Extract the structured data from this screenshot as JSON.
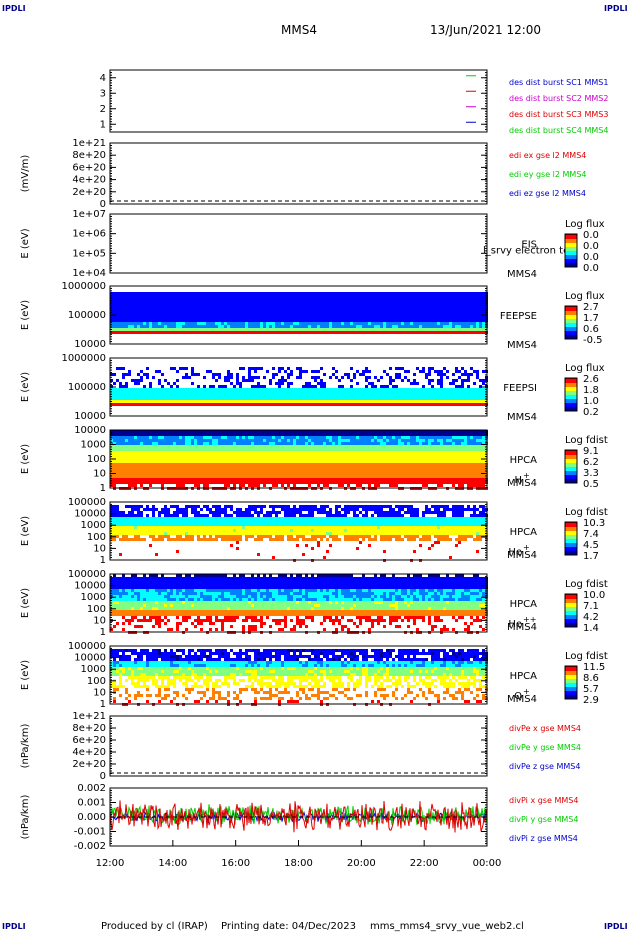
{
  "corner_marks": [
    "IPDLI",
    "IPDLI",
    "IPDLI",
    "IPDLI"
  ],
  "header": {
    "spacecraft": "MMS4",
    "datetime": "13/Jun/2021 12:00"
  },
  "footer": {
    "producer": "Produced by cl (IRAP)",
    "printing": "Printing date: 04/Dec/2023",
    "file": "mms_mms4_srvy_vue_web2.cl"
  },
  "colors": {
    "blue": "#0000cc",
    "green": "#00cc00",
    "red": "#dd0000",
    "magenta": "#cc00cc",
    "jet": [
      "#00008f",
      "#0000ff",
      "#0080ff",
      "#00ffff",
      "#80ff80",
      "#ffff00",
      "#ff8000",
      "#ff0000",
      "#800000"
    ]
  },
  "chart_data": [
    {
      "id": "bursts",
      "type": "line",
      "ylabel": "",
      "yticks": [
        "4",
        "3",
        "2",
        "1"
      ],
      "legend": [
        {
          "text": "des dist burst SC1 MMS1",
          "color": "#0000cc"
        },
        {
          "text": "des dist burst SC2 MMS2",
          "color": "#cc00cc"
        },
        {
          "text": "des dist burst SC3 MMS3",
          "color": "#dd0000"
        },
        {
          "text": "des dist burst SC4 MMS4",
          "color": "#00cc00"
        }
      ],
      "series": [
        {
          "level": 4,
          "color": "#00cc00"
        },
        {
          "level": 3,
          "color": "#dd0000"
        },
        {
          "level": 2,
          "color": "#cc00cc"
        },
        {
          "level": 1,
          "color": "#0000cc"
        }
      ]
    },
    {
      "id": "edi",
      "type": "line",
      "ylabel": "(mV/m)",
      "yticks": [
        "1e+21",
        "8e+20",
        "6e+20",
        "4e+20",
        "2e+20",
        "0"
      ],
      "legend": [
        {
          "text": "edi ex gse l2 MMS4",
          "color": "#dd0000"
        },
        {
          "text": "edi ey gse l2 MMS4",
          "color": "#00cc00"
        },
        {
          "text": "edi ez gse l2 MMS4",
          "color": "#0000cc"
        }
      ],
      "zero_line": true
    },
    {
      "id": "eis",
      "type": "heatmap",
      "ylabel": "E (eV)",
      "yticks": [
        "1e+07",
        "1e+06",
        "1e+05",
        "1e+04"
      ],
      "instrument": "EIS",
      "instrument2": "l_srvy electron to",
      "spacecraft": "MMS4",
      "cbar_title": "Log flux",
      "cbar_ticks": [
        "0.0",
        "0.0",
        "0.0",
        "0.0"
      ],
      "empty": true
    },
    {
      "id": "feepse",
      "type": "heatmap",
      "ylabel": "E (eV)",
      "yticks": [
        "1000000",
        "100000",
        "10000"
      ],
      "instrument": "FEEPSE",
      "spacecraft": "MMS4",
      "cbar_title": "Log flux",
      "cbar_ticks": [
        "2.7",
        "1.7",
        "0.6",
        "-0.5"
      ]
    },
    {
      "id": "feepsi",
      "type": "heatmap",
      "ylabel": "E (eV)",
      "yticks": [
        "1000000",
        "100000",
        "10000"
      ],
      "instrument": "FEEPSI",
      "spacecraft": "MMS4",
      "cbar_title": "Log flux",
      "cbar_ticks": [
        "2.6",
        "1.8",
        "1.0",
        "0.2"
      ]
    },
    {
      "id": "hpca_h",
      "type": "heatmap",
      "ylabel": "E (eV)",
      "yticks": [
        "10000",
        "1000",
        "100",
        "10",
        "1"
      ],
      "instrument": "HPCA",
      "spacecraft": "MMS4",
      "species": "H",
      "charge": "+",
      "cbar_title": "Log fdist",
      "cbar_ticks": [
        "9.1",
        "6.2",
        "3.3",
        "0.5"
      ]
    },
    {
      "id": "hpca_he",
      "type": "heatmap",
      "ylabel": "E (eV)",
      "yticks": [
        "100000",
        "10000",
        "1000",
        "100",
        "10",
        "1"
      ],
      "instrument": "HPCA",
      "spacecraft": "MMS4",
      "species": "He",
      "charge": "+",
      "cbar_title": "Log fdist",
      "cbar_ticks": [
        "10.3",
        "7.4",
        "4.5",
        "1.7"
      ]
    },
    {
      "id": "hpca_he2",
      "type": "heatmap",
      "ylabel": "E (eV)",
      "yticks": [
        "100000",
        "10000",
        "1000",
        "100",
        "10",
        "1"
      ],
      "instrument": "HPCA",
      "spacecraft": "MMS4",
      "species": "He",
      "charge": "++",
      "cbar_title": "Log fdist",
      "cbar_ticks": [
        "10.0",
        "7.1",
        "4.2",
        "1.4"
      ]
    },
    {
      "id": "hpca_o",
      "type": "heatmap",
      "ylabel": "E (eV)",
      "yticks": [
        "100000",
        "10000",
        "1000",
        "100",
        "10",
        "1"
      ],
      "instrument": "HPCA",
      "spacecraft": "MMS4",
      "species": "O",
      "charge": "+",
      "cbar_title": "Log fdist",
      "cbar_ticks": [
        "11.5",
        "8.6",
        "5.7",
        "2.9"
      ]
    },
    {
      "id": "divpe",
      "type": "line",
      "ylabel": "(nPa/km)",
      "yticks": [
        "1e+21",
        "8e+20",
        "6e+20",
        "4e+20",
        "2e+20",
        "0"
      ],
      "legend": [
        {
          "text": "divPe x gse MMS4",
          "color": "#dd0000"
        },
        {
          "text": "divPe y gse MMS4",
          "color": "#00cc00"
        },
        {
          "text": "divPe z gse MMS4",
          "color": "#0000cc"
        }
      ],
      "zero_line": true
    },
    {
      "id": "divpi",
      "type": "line",
      "ylabel": "(nPa/km)",
      "yticks": [
        "0.002",
        "0.001",
        "0.000",
        "-0.001",
        "-0.002"
      ],
      "ylim": [
        -0.0025,
        0.0025
      ],
      "legend": [
        {
          "text": "divPi x gse MMS4",
          "color": "#dd0000"
        },
        {
          "text": "divPi y gse MMS4",
          "color": "#00cc00"
        },
        {
          "text": "divPi z gse MMS4",
          "color": "#0000cc"
        }
      ],
      "zero_line": true
    }
  ],
  "xaxis": {
    "ticks": [
      "12:00",
      "14:00",
      "16:00",
      "18:00",
      "20:00",
      "22:00",
      "00:00"
    ]
  }
}
